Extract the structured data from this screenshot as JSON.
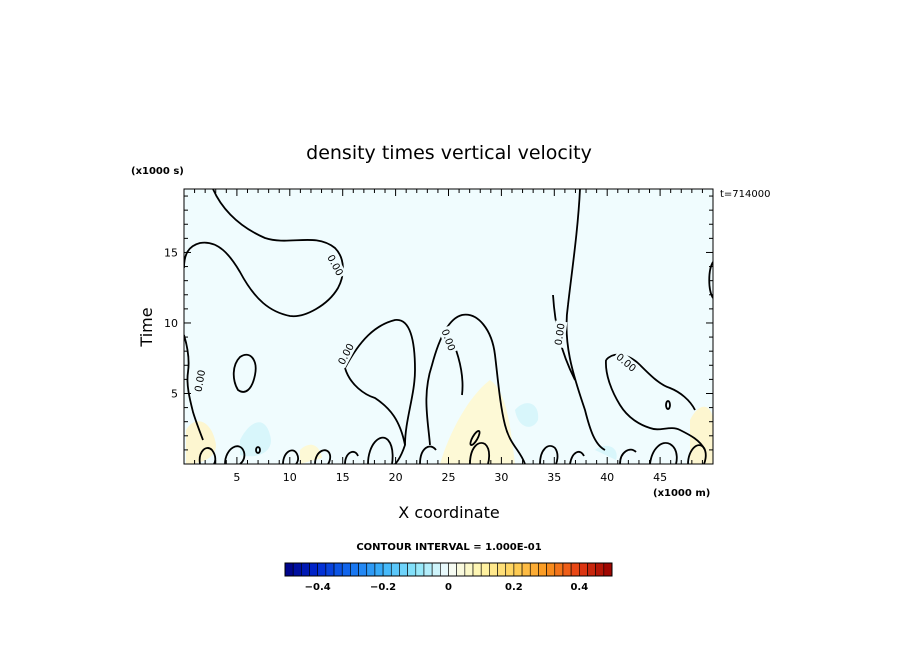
{
  "chart_data": {
    "type": "contour",
    "title": "density times vertical velocity",
    "xlabel": "X coordinate",
    "ylabel": "Time",
    "x_scale_label": "(x1000 m)",
    "y_scale_label": "(x1000 s)",
    "time_stamp": "t=714000",
    "xlim": [
      0,
      50
    ],
    "ylim": [
      0,
      19.5
    ],
    "x_ticks": [
      "5",
      "10",
      "15",
      "20",
      "25",
      "30",
      "35",
      "40",
      "45"
    ],
    "x_tick_values": [
      5,
      10,
      15,
      20,
      25,
      30,
      35,
      40,
      45
    ],
    "y_ticks": [
      "5",
      "10",
      "15"
    ],
    "y_tick_values": [
      5,
      10,
      15
    ],
    "contour_interval_text": "CONTOUR INTERVAL = 1.000E-01",
    "contour_level_label": "0.00",
    "contour_labels": [
      {
        "text": "0.00",
        "x": 14.3,
        "y": 14.1,
        "rotate": 62
      },
      {
        "text": "0.00",
        "x": 1.5,
        "y": 5.9,
        "rotate": -80
      },
      {
        "text": "0.00",
        "x": 15.3,
        "y": 7.8,
        "rotate": -62
      },
      {
        "text": "0.00",
        "x": 25.0,
        "y": 8.8,
        "rotate": 70
      },
      {
        "text": "0.00",
        "x": 35.5,
        "y": 9.2,
        "rotate": -82
      },
      {
        "text": "0.00",
        "x": 41.8,
        "y": 7.2,
        "rotate": 40
      }
    ],
    "fill_color": "#f0fcfe",
    "colorbar": {
      "min": -0.5,
      "max": 0.5,
      "step": 0.025,
      "tick_labels": [
        "−0.4",
        "−0.2",
        "0",
        "0.2",
        "0.4"
      ],
      "tick_values": [
        -0.4,
        -0.2,
        0,
        0.2,
        0.4
      ]
    }
  }
}
